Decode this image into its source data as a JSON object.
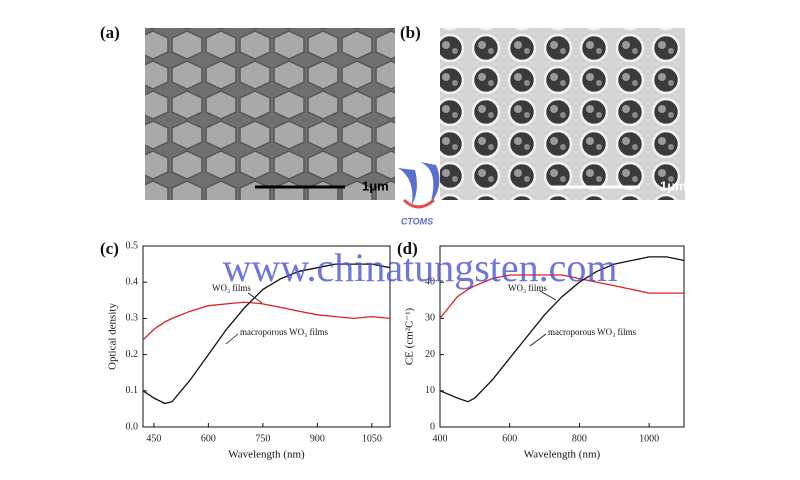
{
  "images": [
    {
      "label": "(a)",
      "scale_bar": "1μm"
    },
    {
      "label": "(b)",
      "scale_bar": "1μm"
    }
  ],
  "watermark": {
    "url": "www.chinatungsten.com",
    "logo": "CTOMS"
  },
  "chart_data": [
    {
      "type": "line",
      "label": "(c)",
      "x_label": "Wavelength (nm)",
      "y_label": "Optical density",
      "x": [
        420,
        450,
        480,
        500,
        550,
        600,
        650,
        700,
        750,
        800,
        850,
        900,
        950,
        1000,
        1050,
        1100
      ],
      "series": [
        {
          "name": "WO₃ films",
          "color": "#e02020",
          "values": [
            0.24,
            0.27,
            0.29,
            0.3,
            0.32,
            0.335,
            0.34,
            0.345,
            0.34,
            0.33,
            0.32,
            0.31,
            0.305,
            0.3,
            0.305,
            0.3
          ]
        },
        {
          "name": "macroporous WO₃ films",
          "color": "#111111",
          "values": [
            0.1,
            0.08,
            0.065,
            0.07,
            0.13,
            0.2,
            0.27,
            0.33,
            0.38,
            0.41,
            0.43,
            0.44,
            0.45,
            0.45,
            0.45,
            0.44
          ]
        }
      ],
      "xlim": [
        420,
        1100
      ],
      "xticks": [
        450,
        600,
        750,
        900,
        1050
      ],
      "ylim": [
        0,
        0.5
      ],
      "yticks": [
        {
          "value": 0,
          "label": "0.0"
        },
        0.1,
        0.2,
        0.3,
        0.4,
        0.5
      ]
    },
    {
      "type": "line",
      "label": "(d)",
      "x_label": "Wavelength (nm)",
      "y_label": "CE (cm²C⁻¹)",
      "x": [
        400,
        450,
        480,
        500,
        550,
        600,
        650,
        700,
        750,
        800,
        850,
        900,
        950,
        1000,
        1050,
        1100
      ],
      "series": [
        {
          "name": "WO₃ films",
          "color": "#e02020",
          "values": [
            30,
            36,
            38,
            39,
            41,
            42,
            42,
            42,
            42,
            41,
            40,
            39,
            38,
            37,
            37,
            37
          ]
        },
        {
          "name": "macroporous WO₃ films",
          "color": "#111111",
          "values": [
            10,
            8,
            7,
            8,
            13,
            19,
            25,
            31,
            36,
            40,
            43,
            45,
            46,
            47,
            47,
            46
          ]
        }
      ],
      "xlim": [
        400,
        1100
      ],
      "xticks": [
        400,
        600,
        800,
        1000
      ],
      "ylim": [
        0,
        50
      ],
      "yticks": [
        0,
        10,
        20,
        30,
        40
      ]
    }
  ]
}
